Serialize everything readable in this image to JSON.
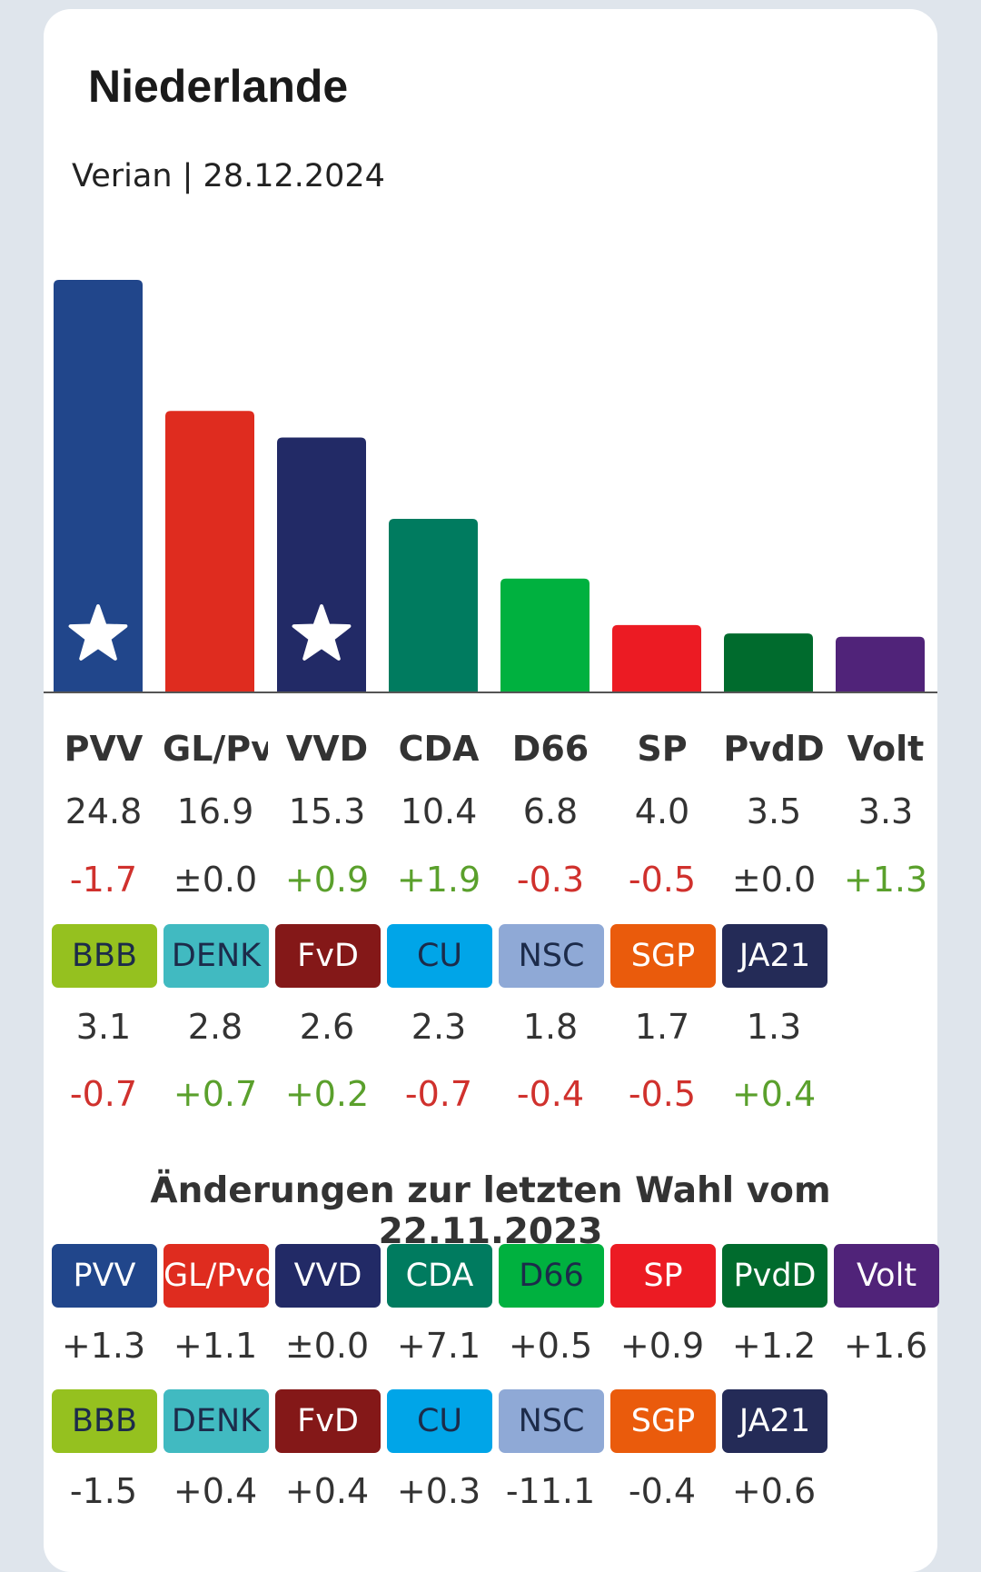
{
  "card": {
    "title": "Niederlande",
    "subtitle": "Verian | 28.12.2024"
  },
  "chart_data": {
    "type": "bar",
    "categories": [
      "PVV",
      "GL/Pvda",
      "VVD",
      "CDA",
      "D66",
      "SP",
      "PvdD",
      "Volt"
    ],
    "values": [
      24.8,
      16.9,
      15.3,
      10.4,
      6.8,
      4.0,
      3.5,
      3.3
    ],
    "colors": [
      "#21468b",
      "#df2c1f",
      "#222a66",
      "#007b5f",
      "#00b13f",
      "#ec1b23",
      "#006b2d",
      "#502379"
    ],
    "starred": [
      true,
      false,
      true,
      false,
      false,
      false,
      false,
      false
    ],
    "ylim": [
      0,
      24.8
    ]
  },
  "main_table": {
    "top_names": [
      "PVV",
      "GL/Pvda",
      "VVD",
      "CDA",
      "D66",
      "SP",
      "PvdD",
      "Volt"
    ],
    "top_values": [
      "24.8",
      "16.9",
      "15.3",
      "10.4",
      "6.8",
      "4.0",
      "3.5",
      "3.3"
    ],
    "top_changes": [
      "-1.7",
      "±0.0",
      "+0.9",
      "+1.9",
      "-0.3",
      "-0.5",
      "±0.0",
      "+1.3"
    ],
    "small_parties": [
      {
        "name": "BBB",
        "color": "#95c11f",
        "dark_text": true
      },
      {
        "name": "DENK",
        "color": "#41bac1",
        "dark_text": true
      },
      {
        "name": "FvD",
        "color": "#841818",
        "dark_text": false
      },
      {
        "name": "CU",
        "color": "#00a5e8",
        "dark_text": true
      },
      {
        "name": "NSC",
        "color": "#8fa9d6",
        "dark_text": true
      },
      {
        "name": "SGP",
        "color": "#ea5b0c",
        "dark_text": false
      },
      {
        "name": "JA21",
        "color": "#242b57",
        "dark_text": false
      }
    ],
    "small_values": [
      "3.1",
      "2.8",
      "2.6",
      "2.3",
      "1.8",
      "1.7",
      "1.3"
    ],
    "small_changes": [
      "-0.7",
      "+0.7",
      "+0.2",
      "-0.7",
      "-0.4",
      "-0.5",
      "+0.4"
    ]
  },
  "election_changes": {
    "heading": "Änderungen zur letzten Wahl vom 22.11.2023",
    "row1": [
      {
        "name": "PVV",
        "color": "#21468b",
        "dark_text": false,
        "change": "+1.3"
      },
      {
        "name": "GL/Pvda",
        "color": "#df2c1f",
        "dark_text": false,
        "change": "+1.1"
      },
      {
        "name": "VVD",
        "color": "#222a66",
        "dark_text": false,
        "change": "±0.0"
      },
      {
        "name": "CDA",
        "color": "#007b5f",
        "dark_text": false,
        "change": "+7.1"
      },
      {
        "name": "D66",
        "color": "#00b13f",
        "dark_text": true,
        "change": "+0.5"
      },
      {
        "name": "SP",
        "color": "#ec1b23",
        "dark_text": false,
        "change": "+0.9"
      },
      {
        "name": "PvdD",
        "color": "#006b2d",
        "dark_text": false,
        "change": "+1.2"
      },
      {
        "name": "Volt",
        "color": "#502379",
        "dark_text": false,
        "change": "+1.6"
      }
    ],
    "row2": [
      {
        "name": "BBB",
        "color": "#95c11f",
        "dark_text": true,
        "change": "-1.5"
      },
      {
        "name": "DENK",
        "color": "#41bac1",
        "dark_text": true,
        "change": "+0.4"
      },
      {
        "name": "FvD",
        "color": "#841818",
        "dark_text": false,
        "change": "+0.4"
      },
      {
        "name": "CU",
        "color": "#00a5e8",
        "dark_text": true,
        "change": "+0.3"
      },
      {
        "name": "NSC",
        "color": "#8fa9d6",
        "dark_text": true,
        "change": "-11.1"
      },
      {
        "name": "SGP",
        "color": "#ea5b0c",
        "dark_text": false,
        "change": "-0.4"
      },
      {
        "name": "JA21",
        "color": "#242b57",
        "dark_text": false,
        "change": "+0.6"
      }
    ]
  }
}
